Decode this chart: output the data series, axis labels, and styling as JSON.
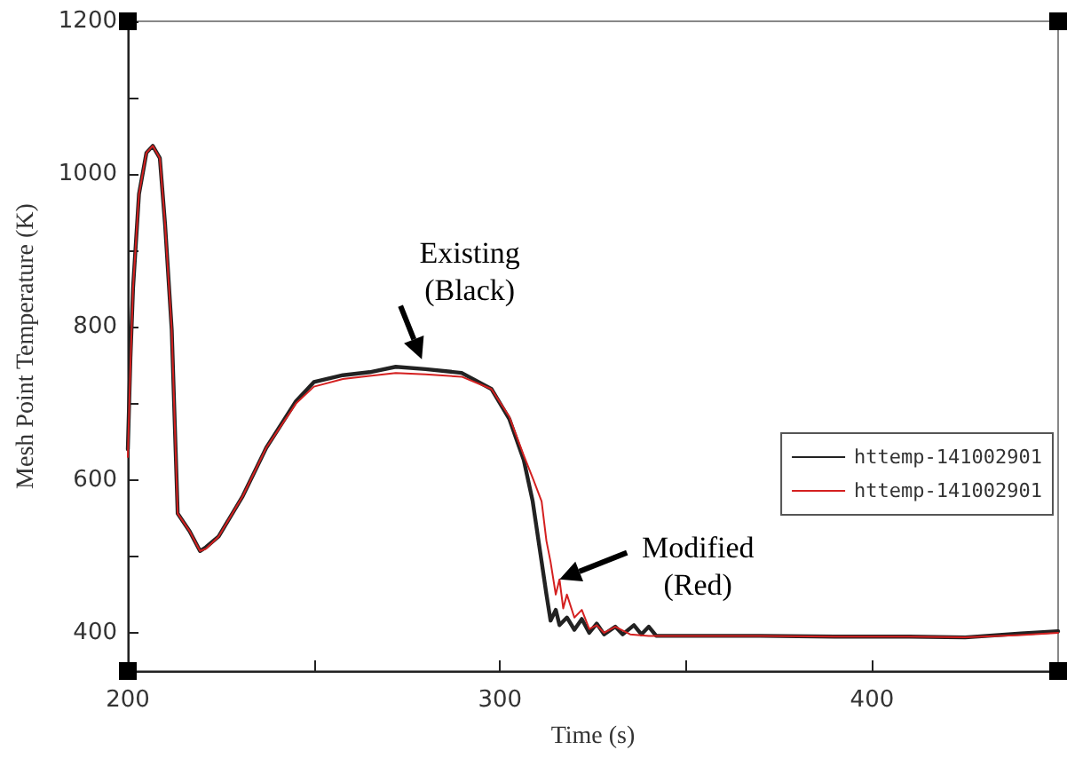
{
  "chart_data": {
    "type": "line",
    "xlabel": "Time (s)",
    "ylabel": "Mesh Point Temperature (K)",
    "xlim": [
      200,
      450
    ],
    "xticks": [
      200,
      {
        "value": 250,
        "label": null
      },
      300,
      {
        "value": 350,
        "label": null
      },
      400
    ],
    "ylim": [
      350,
      1200
    ],
    "yticks": [
      400,
      {
        "value": 500,
        "label": null
      },
      600,
      {
        "value": 700,
        "label": null
      },
      800,
      {
        "value": 900,
        "label": null
      },
      1000,
      {
        "value": 1100,
        "label": null
      },
      1200
    ],
    "grid": false,
    "legend": "right",
    "marker": "none",
    "line_style": "solid",
    "annotations": [
      {
        "text": "Existing\n(Black)",
        "x": 279,
        "y": 758
      },
      {
        "text": "Modified\n(Red)",
        "x": 316,
        "y": 470
      }
    ],
    "series": [
      {
        "name": "httemp-141002901",
        "color": "#222222",
        "x": [
          200,
          200.7,
          201.4,
          203,
          205,
          206.7,
          208.6,
          210,
          211.8,
          213.4,
          216.6,
          219.4,
          221,
          224.4,
          230.9,
          237.2,
          245.2,
          250,
          257.8,
          265,
          272,
          280,
          289.7,
          297.7,
          302.5,
          306.4,
          308.8,
          311.2,
          312.5,
          313.6,
          315,
          316,
          318,
          320,
          322,
          324,
          326,
          328,
          331,
          333,
          336,
          338,
          340,
          342,
          350,
          370,
          390,
          410,
          425,
          440,
          450
        ],
        "values": [
          640,
          760,
          851,
          974,
          1028,
          1037,
          1021,
          935,
          796,
          556,
          533,
          507,
          512,
          526,
          579,
          642,
          703,
          728,
          737,
          741,
          748,
          745,
          740,
          719,
          680,
          626,
          572,
          493,
          450,
          416,
          430,
          410,
          420,
          404,
          418,
          400,
          412,
          398,
          408,
          398,
          410,
          398,
          408,
          396,
          396,
          396,
          395,
          395,
          394,
          399,
          402
        ]
      },
      {
        "name": "httemp-141002901",
        "color": "#d42020",
        "x": [
          200,
          200.7,
          201.4,
          203,
          205,
          206.7,
          208.6,
          210,
          211.8,
          213.4,
          216.6,
          219.4,
          221,
          224.4,
          230.9,
          237.2,
          245.2,
          250,
          257.8,
          265,
          272,
          280,
          289.7,
          297.7,
          302.5,
          306.4,
          309,
          311.2,
          312.5,
          313.6,
          315,
          316,
          317,
          318,
          320,
          322,
          324,
          326,
          328,
          331,
          335,
          340,
          350,
          370,
          390,
          410,
          425,
          440,
          450
        ],
        "values": [
          630,
          750,
          851,
          974,
          1028,
          1037,
          1021,
          935,
          796,
          556,
          533,
          507,
          510,
          526,
          579,
          642,
          700,
          722,
          732,
          736,
          740,
          738,
          735,
          719,
          683,
          632,
          600,
          572,
          520,
          493,
          450,
          470,
          432,
          450,
          420,
          430,
          405,
          410,
          400,
          408,
          398,
          396,
          396,
          396,
          395,
          395,
          394,
          397,
          400
        ]
      }
    ]
  }
}
